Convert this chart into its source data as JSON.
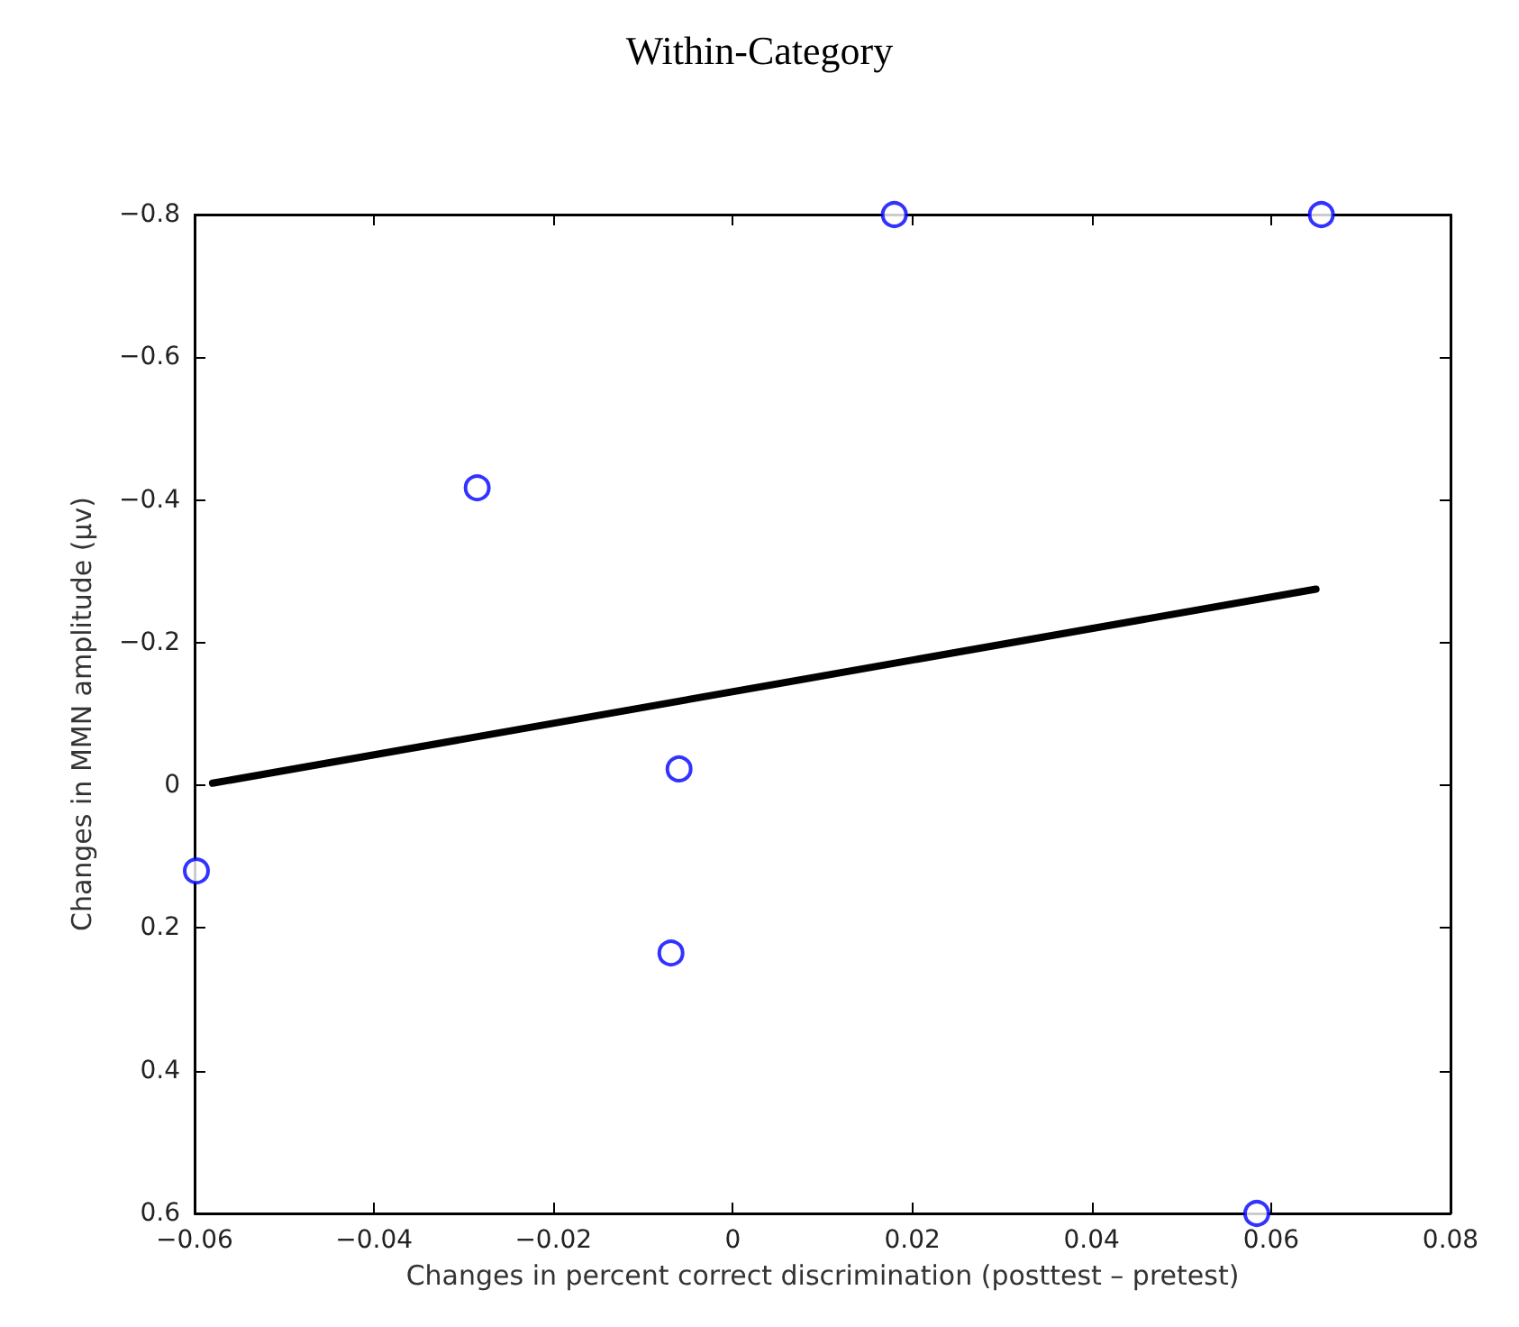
{
  "chart_data": {
    "type": "scatter",
    "title": "Within-Category",
    "xlabel": "Changes in percent correct discrimination (posttest – pretest)",
    "ylabel": "Changes in MMN amplitude (μv)",
    "xlim": [
      -0.06,
      0.08
    ],
    "xticks": [
      {
        "value": -0.06,
        "label": "−0.06"
      },
      {
        "value": -0.04,
        "label": "−0.04"
      },
      {
        "value": -0.02,
        "label": "−0.02"
      },
      0,
      0.02,
      0.04,
      0.06,
      0.08
    ],
    "ylim": [
      0.6,
      -0.8
    ],
    "yticks": [
      {
        "value": -0.8,
        "label": "−0.8"
      },
      {
        "value": -0.6,
        "label": "−0.6"
      },
      {
        "value": -0.4,
        "label": "−0.4"
      },
      {
        "value": -0.2,
        "label": "−0.2"
      },
      0,
      0.2,
      0.4,
      0.6
    ],
    "grid": false,
    "series": [
      {
        "color": "#0000ff",
        "marker": "circle",
        "x": [
          -0.0598,
          -0.0285,
          -0.0069,
          -0.006,
          0.018,
          0.0584,
          0.0656
        ],
        "values": [
          0.12,
          -0.417,
          0.235,
          -0.023,
          -0.8,
          0.6,
          -0.8
        ]
      },
      {
        "type": "line",
        "color": "#000000",
        "line_style": "solid",
        "marker": "none",
        "x": [
          -0.058,
          0.065
        ],
        "values": [
          -0.003,
          -0.275
        ]
      }
    ]
  }
}
